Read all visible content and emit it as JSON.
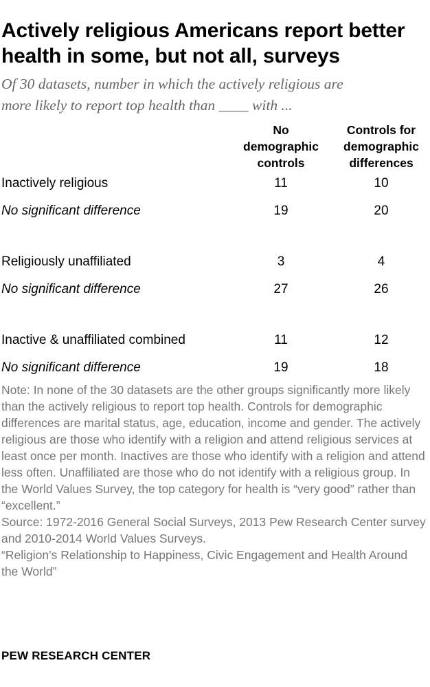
{
  "title": "Actively religious Americans report better health in some, but not all, surveys",
  "subtitle_line1": "Of 30 datasets, number in which the actively religious are",
  "subtitle_line2": "more likely to report top health than ____ with ...",
  "columns": [
    "No\ndemographic\ncontrols",
    "Controls for\ndemographic\ndifferences"
  ],
  "groups": [
    {
      "label": "Inactively religious",
      "values": [
        "11",
        "10"
      ],
      "nsd_label": "No significant difference",
      "nsd_values": [
        "19",
        "20"
      ]
    },
    {
      "label": "Religiously unaffiliated",
      "values": [
        "3",
        "4"
      ],
      "nsd_label": "No significant difference",
      "nsd_values": [
        "27",
        "26"
      ]
    },
    {
      "label": "Inactive & unaffiliated combined",
      "values": [
        "11",
        "12"
      ],
      "nsd_label": "No significant difference",
      "nsd_values": [
        "19",
        "18"
      ]
    }
  ],
  "note": "Note: In none of the 30 datasets are the other groups significantly more likely than the actively religious to report top health. Controls for demographic differences are marital status, age, education, income and gender. The actively religious are those who identify with a religion and attend religious services at least once per month. Inactives are those who identify with a religion and attend less often. Unaffiliated are those who do not identify with a religious group. In the World Values Survey, the top category for health is “very good” rather than “excellent.”",
  "source": "Source: 1972-2016 General Social Surveys, 2013 Pew Research Center survey and 2010-2014 World Values Surveys.",
  "report": "“Religion’s Relationship to Happiness, Civic Engagement and Health Around the World”",
  "brand": "PEW RESEARCH CENTER"
}
